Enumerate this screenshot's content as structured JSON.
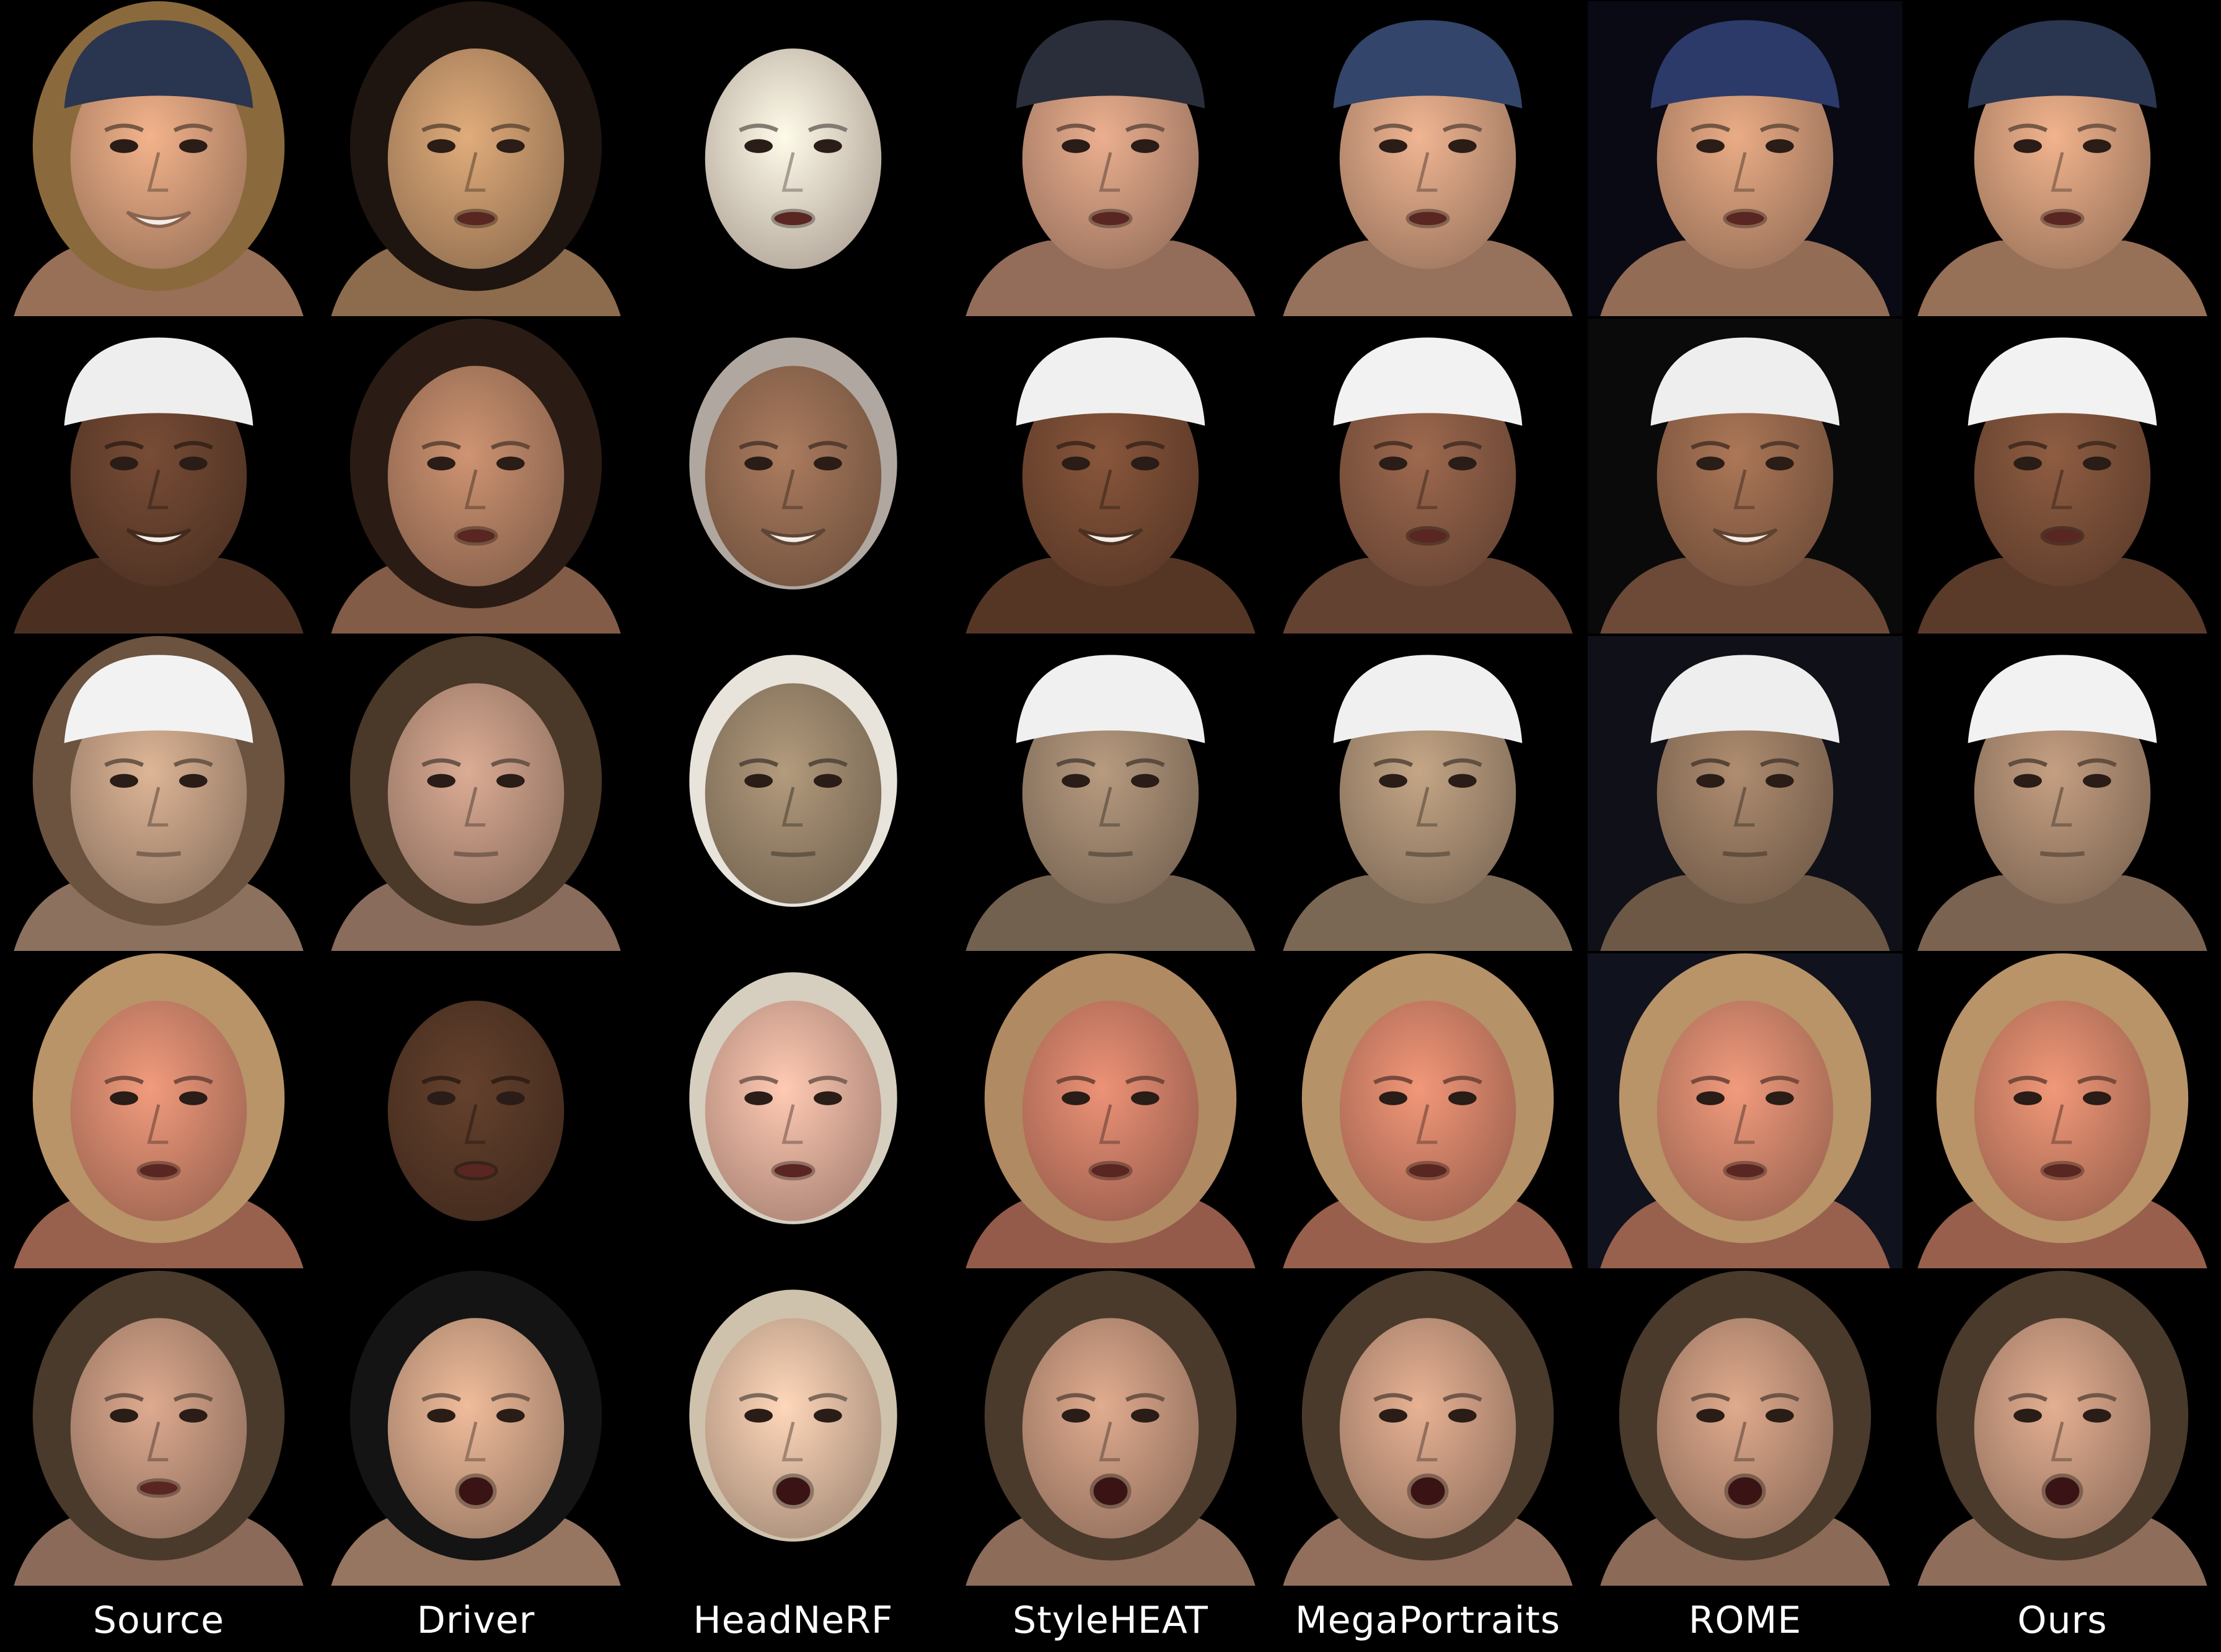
{
  "figure": {
    "columns": [
      {
        "key": "source",
        "label": "Source"
      },
      {
        "key": "driver",
        "label": "Driver"
      },
      {
        "key": "headnerf",
        "label": "HeadNeRF"
      },
      {
        "key": "styleheat",
        "label": "StyleHEAT"
      },
      {
        "key": "megaportraits",
        "label": "MegaPortraits"
      },
      {
        "key": "rome",
        "label": "ROME"
      },
      {
        "key": "ours",
        "label": "Ours"
      }
    ],
    "rows": [
      {
        "subject": "woman-bandana",
        "cells": [
          {
            "skin": "#d9a07c",
            "hair": "#8a6a3c",
            "hat": "#2a3550",
            "bg": "#000000",
            "mouth": "smile",
            "masked": false
          },
          {
            "skin": "#c99a6e",
            "hair": "#1e1510",
            "hat": "",
            "bg": "#000000",
            "mouth": "talk",
            "masked": false
          },
          {
            "skin": "#efe0d0",
            "hair": "",
            "hat": "",
            "bg": "#000000",
            "mouth": "talk",
            "masked": true
          },
          {
            "skin": "#d29c80",
            "hair": "",
            "hat": "#2a2e3a",
            "bg": "#000000",
            "mouth": "talk",
            "masked": false
          },
          {
            "skin": "#d6a282",
            "hair": "",
            "hat": "#33456a",
            "bg": "#000000",
            "mouth": "talk",
            "masked": false
          },
          {
            "skin": "#d19a78",
            "hair": "",
            "hat": "#2c3a6a",
            "bg": "#0a0a14",
            "mouth": "talk",
            "masked": false
          },
          {
            "skin": "#d7a07e",
            "hair": "",
            "hat": "#2a3550",
            "bg": "#000000",
            "mouth": "talk",
            "masked": false
          }
        ]
      },
      {
        "subject": "man-white-cap",
        "cells": [
          {
            "skin": "#6b4430",
            "hair": "",
            "hat": "#eeeeee",
            "bg": "#000000",
            "mouth": "smile",
            "masked": false
          },
          {
            "skin": "#b98466",
            "hair": "#2a1c14",
            "hat": "",
            "bg": "#000000",
            "mouth": "talk",
            "masked": false
          },
          {
            "skin": "#9a6f55",
            "hair": "#b0a8a0",
            "hat": "",
            "bg": "#000000",
            "mouth": "smile",
            "masked": true
          },
          {
            "skin": "#7a4d35",
            "hair": "",
            "hat": "#f0f0f0",
            "bg": "#000000",
            "mouth": "smile",
            "masked": false
          },
          {
            "skin": "#8d5e46",
            "hair": "",
            "hat": "#f2f2f2",
            "bg": "#000000",
            "mouth": "talk",
            "masked": false
          },
          {
            "skin": "#9a6a4e",
            "hair": "",
            "hat": "#eeeeee",
            "bg": "#0a0a0a",
            "mouth": "smile",
            "masked": false
          },
          {
            "skin": "#80533b",
            "hair": "",
            "hat": "#f2f2f2",
            "bg": "#000000",
            "mouth": "talk",
            "masked": false
          }
        ]
      },
      {
        "subject": "man-tennis-cap",
        "cells": [
          {
            "skin": "#c6a286",
            "hair": "#6b5340",
            "hat": "#f2f2f2",
            "bg": "#000000",
            "mouth": "closed",
            "masked": false
          },
          {
            "skin": "#c49a84",
            "hair": "#4a3828",
            "hat": "",
            "bg": "#000000",
            "mouth": "closed",
            "masked": false
          },
          {
            "skin": "#a08a70",
            "hair": "#e8e4dc",
            "hat": "",
            "bg": "#000000",
            "mouth": "closed",
            "masked": true
          },
          {
            "skin": "#a48a72",
            "hair": "",
            "hat": "#f0f0f0",
            "bg": "#000000",
            "mouth": "closed",
            "masked": false
          },
          {
            "skin": "#b09478",
            "hair": "",
            "hat": "#f0f0f0",
            "bg": "#000000",
            "mouth": "closed",
            "masked": false
          },
          {
            "skin": "#9c7e64",
            "hair": "",
            "hat": "#eeeeee",
            "bg": "#101018",
            "mouth": "closed",
            "masked": false
          },
          {
            "skin": "#b08e74",
            "hair": "",
            "hat": "#f2f2f2",
            "bg": "#000000",
            "mouth": "closed",
            "masked": false
          }
        ]
      },
      {
        "subject": "woman-blonde",
        "cells": [
          {
            "skin": "#d88a70",
            "hair": "#b89468",
            "hat": "",
            "bg": "#000000",
            "mouth": "talk",
            "masked": false
          },
          {
            "skin": "#5a3a28",
            "hair": "",
            "hat": "",
            "bg": "#000000",
            "mouth": "talk",
            "masked": true
          },
          {
            "skin": "#e8b4a0",
            "hair": "#d6cfc0",
            "hat": "",
            "bg": "#000000",
            "mouth": "talk",
            "masked": true
          },
          {
            "skin": "#d4826a",
            "hair": "#b08a62",
            "hat": "",
            "bg": "#000000",
            "mouth": "talk",
            "masked": false
          },
          {
            "skin": "#d9876c",
            "hair": "#b69268",
            "hat": "",
            "bg": "#000000",
            "mouth": "talk",
            "masked": false
          },
          {
            "skin": "#d88a70",
            "hair": "#b89468",
            "hat": "",
            "bg": "#10121e",
            "mouth": "talk",
            "masked": false
          },
          {
            "skin": "#d8886c",
            "hair": "#b89468",
            "hat": "",
            "bg": "#000000",
            "mouth": "talk",
            "masked": false
          }
        ]
      },
      {
        "subject": "woman-brunette",
        "cells": [
          {
            "skin": "#c69880",
            "hair": "#4a3a2c",
            "hat": "",
            "bg": "#000000",
            "mouth": "talk",
            "masked": false
          },
          {
            "skin": "#d6a88a",
            "hair": "#141414",
            "hat": "",
            "bg": "#000000",
            "mouth": "open",
            "masked": false
          },
          {
            "skin": "#e4c0a6",
            "hair": "#cfc2ac",
            "hat": "",
            "bg": "#000000",
            "mouth": "open",
            "masked": true
          },
          {
            "skin": "#c99a80",
            "hair": "#4a3a2c",
            "hat": "",
            "bg": "#000000",
            "mouth": "open",
            "masked": false
          },
          {
            "skin": "#cf9f84",
            "hair": "#4a3a2c",
            "hat": "",
            "bg": "#000000",
            "mouth": "open",
            "masked": false
          },
          {
            "skin": "#c8987e",
            "hair": "#4a3a2c",
            "hat": "",
            "bg": "#000000",
            "mouth": "open",
            "masked": false
          },
          {
            "skin": "#cc9c82",
            "hair": "#4a3a2c",
            "hat": "",
            "bg": "#000000",
            "mouth": "open",
            "masked": false
          }
        ]
      }
    ]
  }
}
